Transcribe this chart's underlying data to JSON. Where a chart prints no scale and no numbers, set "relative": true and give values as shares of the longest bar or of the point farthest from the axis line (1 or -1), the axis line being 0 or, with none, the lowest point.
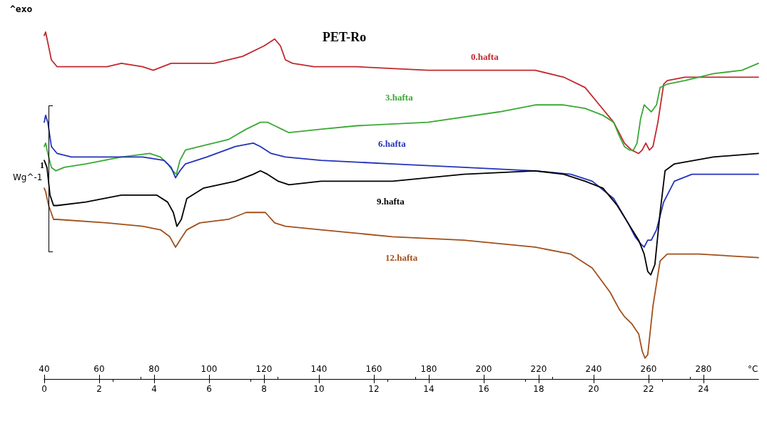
{
  "chart_data": {
    "type": "line",
    "title": "PET-Ro",
    "xlabel": "°C",
    "relative": true,
    "legend": false,
    "grid": false,
    "marker": "none",
    "line_style": "solid",
    "xlim": [
      40,
      300
    ],
    "xticks": [
      40,
      60,
      80,
      100,
      120,
      140,
      160,
      180,
      200,
      220,
      240,
      260,
      280
    ],
    "x2lim": [
      0,
      26
    ],
    "x2ticks": [
      0,
      2,
      4,
      6,
      8,
      10,
      12,
      14,
      16,
      18,
      20,
      22,
      24
    ],
    "annotations": [
      "^exo",
      "1",
      "Wg^-1"
    ],
    "series": [
      {
        "name": "0.hafta",
        "color": "#c0282d",
        "x": [
          40.0,
          40.5,
          41.3,
          42.6,
          44.7,
          49.9,
          62.9,
          68.1,
          75.8,
          79.7,
          86.2,
          101.8,
          112.2,
          120.0,
          123.9,
          126.0,
          127.8,
          130.4,
          138.2,
          153.8,
          179.7,
          205.7,
          218.7,
          229.1,
          236.9,
          242.1,
          247.3,
          251.2,
          253.8,
          256.4,
          257.7,
          259.0,
          260.3,
          261.6,
          263.4,
          265.5,
          266.8,
          273.2,
          283.6,
          294.0,
          300.0
        ],
        "values": [
          0.99,
          1.0,
          0.97,
          0.92,
          0.9,
          0.9,
          0.9,
          0.91,
          0.9,
          0.89,
          0.91,
          0.91,
          0.93,
          0.96,
          0.98,
          0.96,
          0.92,
          0.91,
          0.9,
          0.9,
          0.89,
          0.89,
          0.89,
          0.87,
          0.84,
          0.79,
          0.74,
          0.68,
          0.66,
          0.65,
          0.66,
          0.68,
          0.66,
          0.67,
          0.74,
          0.85,
          0.86,
          0.87,
          0.87,
          0.87,
          0.87
        ]
      },
      {
        "name": "3.hafta",
        "color": "#3aa935",
        "x": [
          40.0,
          40.5,
          41.3,
          42.6,
          44.2,
          47.3,
          55.1,
          68.1,
          78.4,
          82.3,
          84.9,
          86.8,
          88.1,
          89.4,
          91.4,
          96.6,
          107.0,
          113.5,
          118.7,
          121.3,
          123.9,
          126.5,
          129.1,
          140.8,
          153.8,
          179.7,
          205.7,
          218.7,
          229.1,
          236.9,
          243.4,
          247.3,
          249.4,
          251.2,
          253.0,
          254.5,
          255.8,
          257.1,
          258.4,
          259.7,
          261.0,
          262.9,
          264.2,
          266.8,
          273.2,
          283.6,
          294.0,
          300.0
        ],
        "values": [
          0.67,
          0.68,
          0.65,
          0.61,
          0.6,
          0.61,
          0.62,
          0.64,
          0.65,
          0.64,
          0.62,
          0.6,
          0.59,
          0.63,
          0.66,
          0.67,
          0.69,
          0.72,
          0.74,
          0.74,
          0.73,
          0.72,
          0.71,
          0.72,
          0.73,
          0.74,
          0.77,
          0.79,
          0.79,
          0.78,
          0.76,
          0.74,
          0.7,
          0.67,
          0.66,
          0.66,
          0.68,
          0.75,
          0.79,
          0.78,
          0.77,
          0.79,
          0.84,
          0.85,
          0.86,
          0.88,
          0.89,
          0.91
        ]
      },
      {
        "name": "6.hafta",
        "color": "#2233bb",
        "x": [
          40.0,
          40.5,
          41.3,
          42.6,
          44.7,
          49.9,
          62.9,
          75.8,
          83.6,
          86.2,
          87.8,
          89.4,
          91.4,
          99.2,
          109.6,
          116.1,
          118.7,
          122.6,
          127.8,
          140.8,
          166.8,
          192.7,
          218.7,
          231.7,
          239.5,
          247.3,
          252.5,
          255.1,
          257.1,
          258.4,
          259.7,
          261.0,
          262.9,
          265.5,
          269.4,
          275.8,
          283.6,
          300.0
        ],
        "values": [
          0.74,
          0.76,
          0.74,
          0.67,
          0.65,
          0.64,
          0.64,
          0.64,
          0.63,
          0.61,
          0.58,
          0.6,
          0.62,
          0.64,
          0.67,
          0.68,
          0.67,
          0.65,
          0.64,
          0.63,
          0.62,
          0.61,
          0.6,
          0.59,
          0.57,
          0.52,
          0.45,
          0.41,
          0.39,
          0.38,
          0.4,
          0.4,
          0.43,
          0.51,
          0.57,
          0.59,
          0.59,
          0.59
        ]
      },
      {
        "name": "9.hafta",
        "color": "#000000",
        "x": [
          40.0,
          41.0,
          42.1,
          43.4,
          44.7,
          55.1,
          68.1,
          81.0,
          84.9,
          87.0,
          88.3,
          89.9,
          91.9,
          97.9,
          109.6,
          116.1,
          118.7,
          121.3,
          125.2,
          129.1,
          140.8,
          166.8,
          192.7,
          218.7,
          229.1,
          236.9,
          243.4,
          248.6,
          252.5,
          256.4,
          258.4,
          259.7,
          260.8,
          262.3,
          264.2,
          266.0,
          269.4,
          283.6,
          300.0
        ],
        "values": [
          0.63,
          0.61,
          0.53,
          0.5,
          0.5,
          0.51,
          0.53,
          0.53,
          0.51,
          0.48,
          0.44,
          0.46,
          0.52,
          0.55,
          0.57,
          0.59,
          0.6,
          0.59,
          0.57,
          0.56,
          0.57,
          0.57,
          0.59,
          0.6,
          0.59,
          0.57,
          0.55,
          0.5,
          0.45,
          0.4,
          0.36,
          0.31,
          0.3,
          0.33,
          0.48,
          0.6,
          0.62,
          0.64,
          0.65
        ]
      },
      {
        "name": "12.hafta",
        "color": "#a0501c",
        "x": [
          40.0,
          40.5,
          41.6,
          43.4,
          44.7,
          62.9,
          75.8,
          82.3,
          85.7,
          87.8,
          89.4,
          91.9,
          96.6,
          107.0,
          113.5,
          117.4,
          120.5,
          123.9,
          127.8,
          140.8,
          166.8,
          192.7,
          218.7,
          231.7,
          239.5,
          246.0,
          249.4,
          251.2,
          253.8,
          256.4,
          257.7,
          258.7,
          259.7,
          261.6,
          264.2,
          266.8,
          278.4,
          300.0
        ],
        "values": [
          0.55,
          0.54,
          0.5,
          0.46,
          0.46,
          0.45,
          0.44,
          0.43,
          0.41,
          0.38,
          0.4,
          0.43,
          0.45,
          0.46,
          0.48,
          0.48,
          0.48,
          0.45,
          0.44,
          0.43,
          0.41,
          0.4,
          0.38,
          0.36,
          0.32,
          0.25,
          0.2,
          0.18,
          0.16,
          0.13,
          0.08,
          0.06,
          0.07,
          0.21,
          0.34,
          0.36,
          0.36,
          0.35
        ]
      }
    ]
  }
}
